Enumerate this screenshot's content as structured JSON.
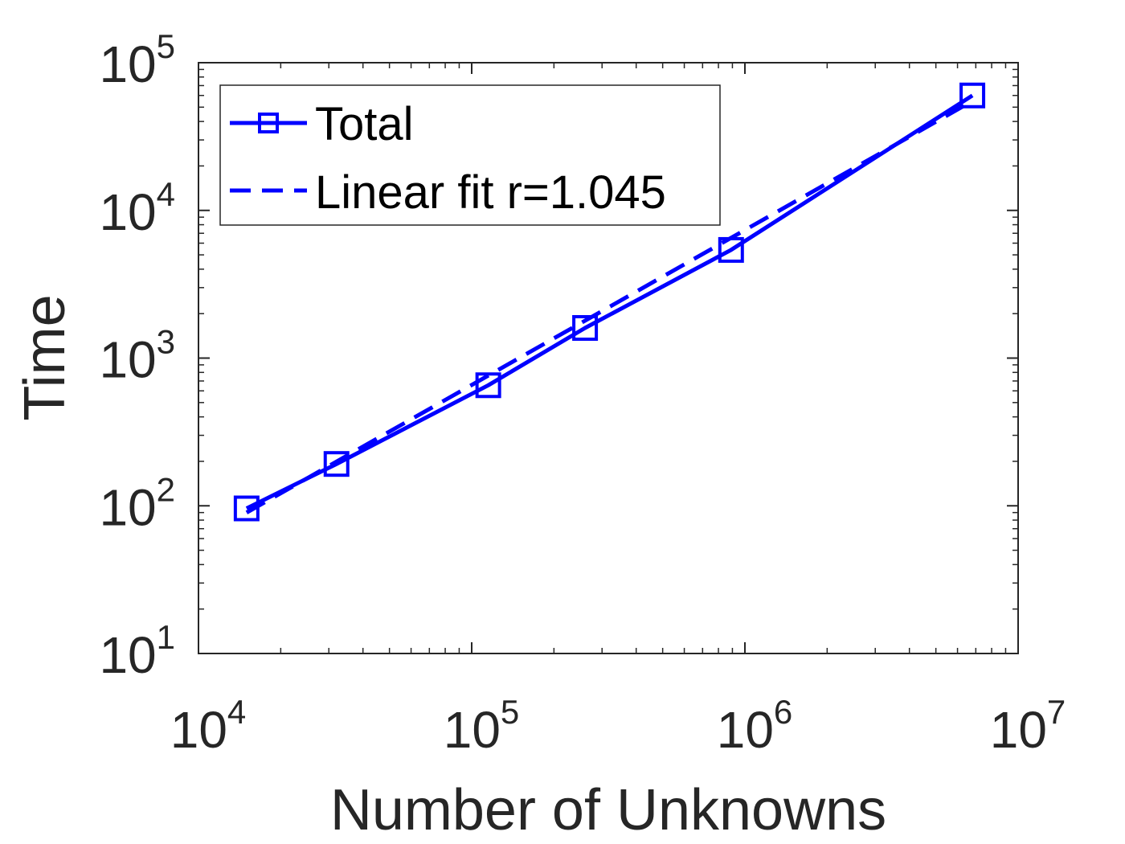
{
  "chart_data": {
    "type": "line",
    "xscale": "log",
    "yscale": "log",
    "xlim": [
      10000,
      10000000
    ],
    "ylim": [
      10,
      100000
    ],
    "xticks": [
      10000,
      100000,
      1000000,
      10000000
    ],
    "yticks": [
      10,
      100,
      1000,
      10000,
      100000
    ],
    "xtick_labels": [
      {
        "base": "10",
        "exp": "4"
      },
      {
        "base": "10",
        "exp": "5"
      },
      {
        "base": "10",
        "exp": "6"
      },
      {
        "base": "10",
        "exp": "7"
      }
    ],
    "ytick_labels": [
      {
        "base": "10",
        "exp": "1"
      },
      {
        "base": "10",
        "exp": "2"
      },
      {
        "base": "10",
        "exp": "3"
      },
      {
        "base": "10",
        "exp": "4"
      },
      {
        "base": "10",
        "exp": "5"
      }
    ],
    "xlabel": "Number of Unknowns",
    "ylabel": "Time",
    "grid": false,
    "legend_position": "top-left",
    "series": [
      {
        "name": "Total",
        "style": "solid",
        "marker": "square",
        "color": "#0000ff",
        "x": [
          15000,
          32000,
          115000,
          260000,
          890000,
          6800000
        ],
        "y": [
          96,
          192,
          655,
          1600,
          5400,
          60000
        ]
      },
      {
        "name": "Linear fit r=1.045",
        "style": "dashed",
        "marker": "none",
        "color": "#0000ff",
        "x": [
          15000,
          6800000
        ],
        "y": [
          90,
          55000
        ]
      }
    ]
  }
}
